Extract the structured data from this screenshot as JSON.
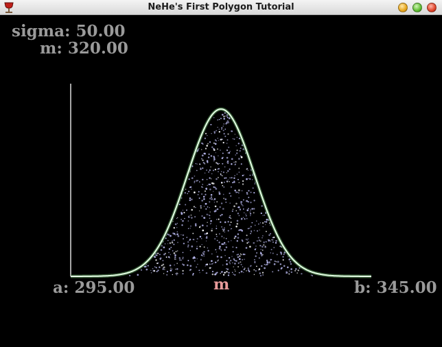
{
  "window": {
    "title": "NeHe's First Polygon Tutorial",
    "app_icon": "wine-glass-icon",
    "buttons": [
      "minimize-icon",
      "maximize-icon",
      "close-icon"
    ]
  },
  "params": {
    "sigma_label": "sigma: 50.00",
    "m_label": "m: 320.00",
    "a_label": "a: 295.00",
    "b_label": "b: 345.00",
    "mean_marker": "m"
  },
  "colors": {
    "background": "#000000",
    "frame_top_left": "#b8b8b8",
    "frame_right": "#e8b0b0",
    "curve": "#e6ffe6",
    "curve_glow": "#4a7a4a",
    "dots": "#b8b8ee",
    "mean_marker": "#e89a9a",
    "labels": "#9a9a9a"
  },
  "chart_data": {
    "type": "area",
    "title": "",
    "xlabel": "",
    "ylabel": "",
    "xlim": [
      295,
      345
    ],
    "distribution": "normal",
    "mean": 320,
    "sigma": 50,
    "markers": {
      "a": 295,
      "b": 345,
      "m": 320
    },
    "fill": "random-dots"
  }
}
